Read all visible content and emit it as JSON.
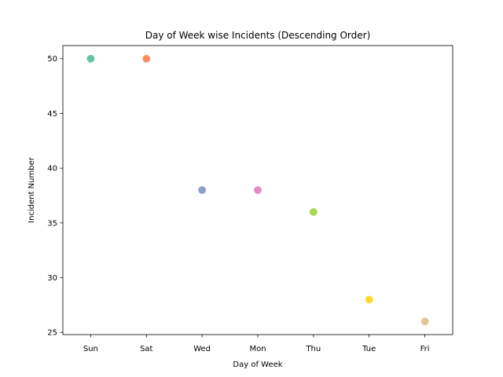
{
  "chart_data": {
    "type": "scatter",
    "title": "Day of Week wise Incidents (Descending Order)",
    "xlabel": "Day of Week",
    "ylabel": "Incident Number",
    "categories": [
      "Sun",
      "Sat",
      "Wed",
      "Mon",
      "Thu",
      "Tue",
      "Fri"
    ],
    "values": [
      50,
      50,
      38,
      38,
      36,
      28,
      26
    ],
    "colors": [
      "#66c2a5",
      "#fc8d62",
      "#8da0cb",
      "#e78ac3",
      "#a6d854",
      "#ffd92f",
      "#e5c494"
    ],
    "ylim": [
      24.8,
      51.2
    ],
    "yticks": [
      25,
      30,
      35,
      40,
      45,
      50
    ],
    "grid": false,
    "legend": "none"
  }
}
